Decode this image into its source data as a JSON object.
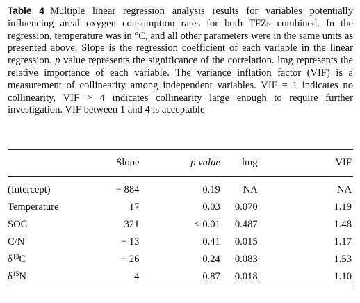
{
  "caption": {
    "label": "Table 4",
    "text_part1": "Multiple linear regression analysis results for variables potentially influencing areal oxygen consumption rates for both TFZs combined. In the regression, temperature was in °C, and all other parameters were in the same units as presented above. Slope is the regression coefficient of each variable in the linear regression. ",
    "p_symbol": "p",
    "text_part2": " value represents the significance of the correlation. lmg represents the relative importance of each variable. The variance inflation factor (VIF) is a measurement of collinearity among independent variables. VIF = 1 indicates no collinearity, VIF > 4 indicates collinearity large enough to require further investigation. VIF between 1 and 4 is acceptable"
  },
  "table": {
    "headers": {
      "variable": "",
      "slope": "Slope",
      "p_value": "p value",
      "lmg": "lmg",
      "vif": "VIF"
    },
    "rows": [
      {
        "variable": "(Intercept)",
        "slope": "− 884",
        "p_value": "0.19",
        "lmg": "NA",
        "vif": "NA"
      },
      {
        "variable": "Temperature",
        "slope": "17",
        "p_value": "0.03",
        "lmg": "0.070",
        "vif": "1.19"
      },
      {
        "variable": "SOC",
        "slope": "321",
        "p_value": "< 0.01",
        "lmg": "0.487",
        "vif": "1.48"
      },
      {
        "variable": "C/N",
        "slope": "− 13",
        "p_value": "0.41",
        "lmg": "0.015",
        "vif": "1.17"
      },
      {
        "variable": {
          "prefix": "δ",
          "sup": "13",
          "base": "C"
        },
        "slope": "− 26",
        "p_value": "0.24",
        "lmg": "0.083",
        "vif": "1.53"
      },
      {
        "variable": {
          "prefix": "δ",
          "sup": "15",
          "base": "N"
        },
        "slope": "4",
        "p_value": "0.87",
        "lmg": "0.018",
        "vif": "1.10"
      }
    ]
  }
}
